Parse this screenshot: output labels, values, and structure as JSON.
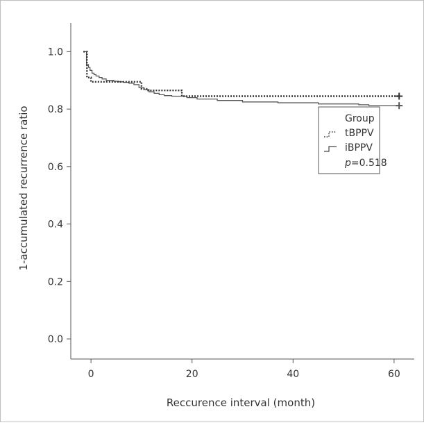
{
  "chart_data": {
    "type": "line",
    "title": "",
    "xlabel": "Reccurence interval (month)",
    "ylabel": "1-accumulated recurrence ratio",
    "xlim": [
      -4,
      64
    ],
    "ylim": [
      -0.07,
      1.1
    ],
    "xticks": [
      0,
      20,
      40,
      60
    ],
    "xtick_labels": [
      "0",
      "20",
      "40",
      "60"
    ],
    "yticks": [
      0.0,
      0.2,
      0.4,
      0.6,
      0.8,
      1.0
    ],
    "ytick_labels": [
      "0.0",
      "0.2",
      "0.4",
      "0.6",
      "0.8",
      "1.0"
    ],
    "grid": false,
    "legend": {
      "title": "Group",
      "placement": "right",
      "p_label": "p",
      "p_value": "=0.518"
    },
    "series": [
      {
        "name": "tBPPV",
        "style": "dotted",
        "color": "#333333",
        "steps": [
          [
            -1.5,
            1.0
          ],
          [
            -0.8,
            0.91
          ],
          [
            0.0,
            0.895
          ],
          [
            10.0,
            0.895
          ],
          [
            10.0,
            0.87
          ],
          [
            11.0,
            0.865
          ],
          [
            18.0,
            0.865
          ],
          [
            18.0,
            0.845
          ],
          [
            61.0,
            0.845
          ]
        ],
        "censored": [
          [
            61.0,
            0.845
          ]
        ]
      },
      {
        "name": "iBPPV",
        "style": "solid",
        "color": "#555555",
        "steps": [
          [
            -1.5,
            1.0
          ],
          [
            -0.9,
            0.955
          ],
          [
            -0.5,
            0.945
          ],
          [
            -0.2,
            0.935
          ],
          [
            0.2,
            0.925
          ],
          [
            0.6,
            0.92
          ],
          [
            1.0,
            0.915
          ],
          [
            1.6,
            0.91
          ],
          [
            2.2,
            0.905
          ],
          [
            3.0,
            0.9
          ],
          [
            4.5,
            0.897
          ],
          [
            5.5,
            0.895
          ],
          [
            6.5,
            0.893
          ],
          [
            7.5,
            0.89
          ],
          [
            8.5,
            0.885
          ],
          [
            9.5,
            0.875
          ],
          [
            10.5,
            0.868
          ],
          [
            11.5,
            0.86
          ],
          [
            12.5,
            0.855
          ],
          [
            13.5,
            0.85
          ],
          [
            14.5,
            0.847
          ],
          [
            16.0,
            0.845
          ],
          [
            19.0,
            0.84
          ],
          [
            21.0,
            0.835
          ],
          [
            25.0,
            0.83
          ],
          [
            30.0,
            0.825
          ],
          [
            37.0,
            0.822
          ],
          [
            45.0,
            0.818
          ],
          [
            53.0,
            0.815
          ],
          [
            55.0,
            0.812
          ],
          [
            61.0,
            0.812
          ]
        ],
        "censored": [
          [
            61.0,
            0.812
          ]
        ]
      }
    ]
  }
}
